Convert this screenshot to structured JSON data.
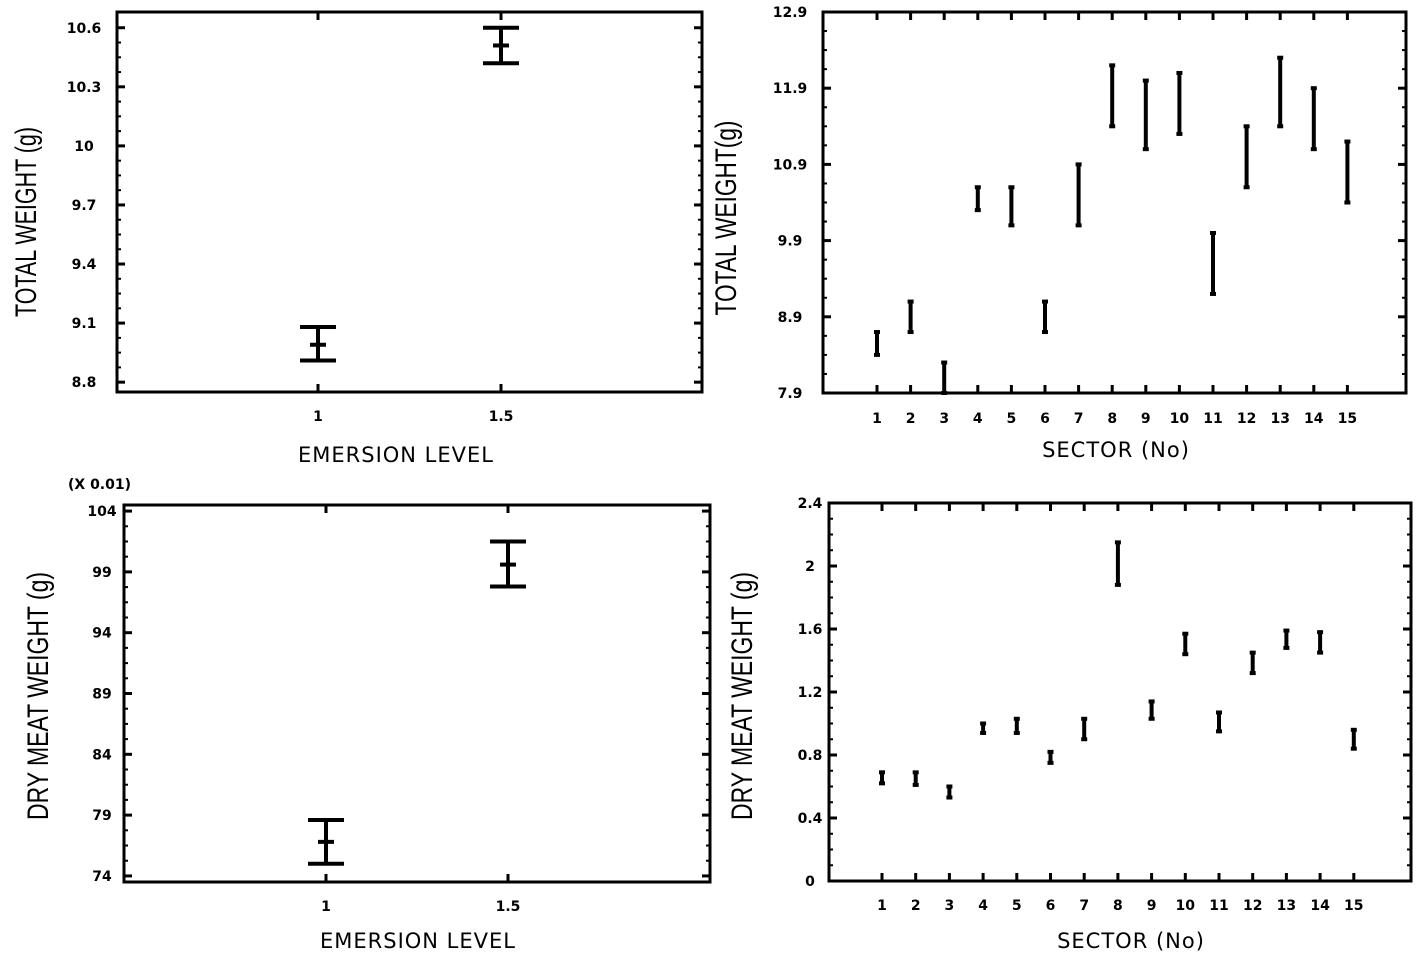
{
  "chart_data": [
    {
      "type": "errorbar",
      "xlabel": "EMERSION LEVEL",
      "ylabel": "TOTAL WEIGHT (g)",
      "xticks": [
        "1",
        "1.5"
      ],
      "yticks": [
        "10.6",
        "10.3",
        "10",
        "9.7",
        "9.4",
        "9.1",
        "8.8"
      ],
      "ylim": [
        8.75,
        10.68
      ],
      "grid": false,
      "points": [
        {
          "x": "1",
          "mean": 8.99,
          "low": 8.91,
          "high": 9.08
        },
        {
          "x": "1.5",
          "mean": 10.51,
          "low": 10.42,
          "high": 10.6
        }
      ]
    },
    {
      "type": "errorbar",
      "xlabel": "SECTOR (No)",
      "ylabel": "TOTAL WEIGHT(g)",
      "xticks": [
        "1",
        "2",
        "3",
        "4",
        "5",
        "6",
        "7",
        "8",
        "9",
        "10",
        "11",
        "12",
        "13",
        "14",
        "15"
      ],
      "yticks": [
        "12.9",
        "11.9",
        "10.9",
        "9.9",
        "8.9",
        "7.9"
      ],
      "ylim": [
        7.9,
        12.9
      ],
      "grid": false,
      "points": [
        {
          "x": "1",
          "low": 8.4,
          "high": 8.7
        },
        {
          "x": "2",
          "low": 8.7,
          "high": 9.1
        },
        {
          "x": "3",
          "low": 7.9,
          "high": 8.3
        },
        {
          "x": "4",
          "low": 10.3,
          "high": 10.6
        },
        {
          "x": "5",
          "low": 10.1,
          "high": 10.6
        },
        {
          "x": "6",
          "low": 8.7,
          "high": 9.1
        },
        {
          "x": "7",
          "low": 10.1,
          "high": 10.9
        },
        {
          "x": "8",
          "low": 11.4,
          "high": 12.2
        },
        {
          "x": "9",
          "low": 11.1,
          "high": 12.0
        },
        {
          "x": "10",
          "low": 11.3,
          "high": 12.1
        },
        {
          "x": "11",
          "low": 9.2,
          "high": 10.0
        },
        {
          "x": "12",
          "low": 10.6,
          "high": 11.4
        },
        {
          "x": "13",
          "low": 11.4,
          "high": 12.3
        },
        {
          "x": "14",
          "low": 11.1,
          "high": 11.9
        },
        {
          "x": "15",
          "low": 10.4,
          "high": 11.2
        }
      ]
    },
    {
      "type": "errorbar",
      "xlabel": "EMERSION LEVEL",
      "ylabel": "DRY MEAT WEIGHT (g)",
      "scale_note": "(X 0.01)",
      "xticks": [
        "1",
        "1.5"
      ],
      "yticks": [
        "104",
        "99",
        "94",
        "89",
        "84",
        "79",
        "74"
      ],
      "ylim": [
        73.5,
        104.5
      ],
      "grid": false,
      "points": [
        {
          "x": "1",
          "mean": 76.8,
          "low": 75.0,
          "high": 78.6
        },
        {
          "x": "1.5",
          "mean": 99.6,
          "low": 97.8,
          "high": 101.5
        }
      ]
    },
    {
      "type": "errorbar",
      "xlabel": "SECTOR (No)",
      "ylabel": "DRY MEAT WEIGHT (g)",
      "xticks": [
        "1",
        "2",
        "3",
        "4",
        "5",
        "6",
        "7",
        "8",
        "9",
        "10",
        "11",
        "12",
        "13",
        "14",
        "15"
      ],
      "yticks": [
        "2.4",
        "2",
        "1.6",
        "1.2",
        "0.8",
        "0.4",
        "0"
      ],
      "ylim": [
        0,
        2.4
      ],
      "grid": false,
      "points": [
        {
          "x": "1",
          "low": 0.62,
          "high": 0.69
        },
        {
          "x": "2",
          "low": 0.61,
          "high": 0.69
        },
        {
          "x": "3",
          "low": 0.53,
          "high": 0.6
        },
        {
          "x": "4",
          "low": 0.94,
          "high": 1.0
        },
        {
          "x": "5",
          "low": 0.94,
          "high": 1.03
        },
        {
          "x": "6",
          "low": 0.75,
          "high": 0.82
        },
        {
          "x": "7",
          "low": 0.9,
          "high": 1.03
        },
        {
          "x": "8",
          "low": 1.88,
          "high": 2.15
        },
        {
          "x": "9",
          "low": 1.03,
          "high": 1.14
        },
        {
          "x": "10",
          "low": 1.44,
          "high": 1.57
        },
        {
          "x": "11",
          "low": 0.95,
          "high": 1.07
        },
        {
          "x": "12",
          "low": 1.32,
          "high": 1.45
        },
        {
          "x": "13",
          "low": 1.48,
          "high": 1.59
        },
        {
          "x": "14",
          "low": 1.45,
          "high": 1.58
        },
        {
          "x": "15",
          "low": 0.84,
          "high": 0.96
        }
      ]
    }
  ]
}
